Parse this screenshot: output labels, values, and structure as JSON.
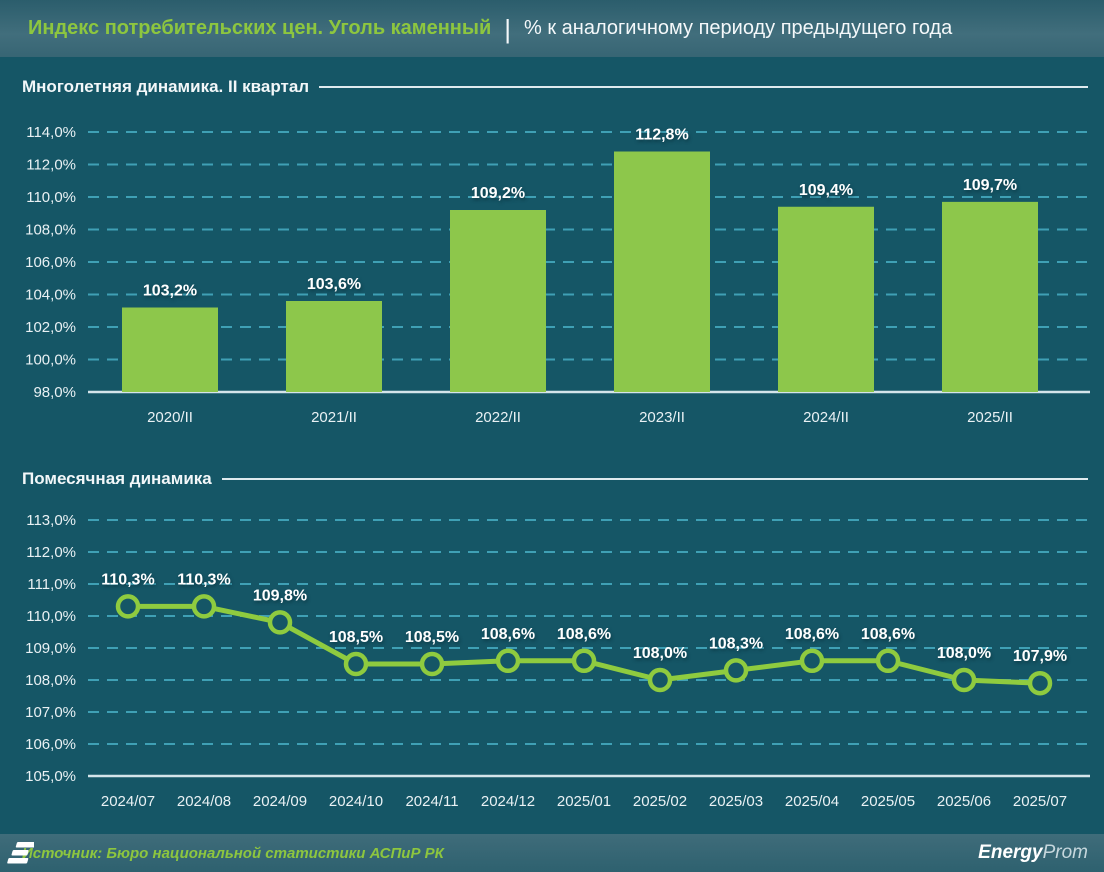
{
  "header": {
    "title_highlight": "Индекс потребительских цен. Уголь каменный",
    "separator": "|",
    "subtitle": "% к аналогичному периоду предыдущего года"
  },
  "chart_data": [
    {
      "type": "bar",
      "title": "Многолетняя динамика. II квартал",
      "categories": [
        "2020/II",
        "2021/II",
        "2022/II",
        "2023/II",
        "2024/II",
        "2025/II"
      ],
      "values": [
        103.2,
        103.6,
        109.2,
        112.8,
        109.4,
        109.7
      ],
      "labels": [
        "103,2%",
        "103,6%",
        "109,2%",
        "112,8%",
        "109,4%",
        "109,7%"
      ],
      "ylim": [
        98,
        114
      ],
      "ytick_values": [
        114,
        112,
        110,
        108,
        106,
        104,
        102,
        100,
        98
      ],
      "yticks": [
        "114,0%",
        "112,0%",
        "110,0%",
        "108,0%",
        "106,0%",
        "104,0%",
        "102,0%",
        "100,0%",
        "98,0%"
      ],
      "grid": "dashed horizontal",
      "legend": "none"
    },
    {
      "type": "line",
      "title": "Помесячная динамика",
      "categories": [
        "2024/07",
        "2024/08",
        "2024/09",
        "2024/10",
        "2024/11",
        "2024/12",
        "2025/01",
        "2025/02",
        "2025/03",
        "2025/04",
        "2025/05",
        "2025/06",
        "2025/07"
      ],
      "values": [
        110.3,
        110.3,
        109.8,
        108.5,
        108.5,
        108.6,
        108.6,
        108.0,
        108.3,
        108.6,
        108.6,
        108.0,
        107.9
      ],
      "labels": [
        "110,3%",
        "110,3%",
        "109,8%",
        "108,5%",
        "108,5%",
        "108,6%",
        "108,6%",
        "108,0%",
        "108,3%",
        "108,6%",
        "108,6%",
        "108,0%",
        "107,9%"
      ],
      "ylim": [
        105,
        113
      ],
      "ytick_values": [
        113,
        112,
        111,
        110,
        109,
        108,
        107,
        106,
        105
      ],
      "yticks": [
        "113,0%",
        "112,0%",
        "111,0%",
        "110,0%",
        "109,0%",
        "108,0%",
        "107,0%",
        "106,0%",
        "105,0%"
      ],
      "grid": "dashed horizontal",
      "legend": "none"
    }
  ],
  "footer": {
    "source": "Источник: Бюро национальной статистики АСПиР РК",
    "logo_bold": "Energy",
    "logo_light": "Prom"
  },
  "colors": {
    "background": "#155666",
    "band": "#3a6775",
    "accent_green": "#8dc63f",
    "bar_green": "#8dc74b",
    "line_green": "#8fcb3f",
    "grid_line": "#3fa0b5",
    "axis_line": "#d4e4ea",
    "text": "#f2f7f9"
  }
}
